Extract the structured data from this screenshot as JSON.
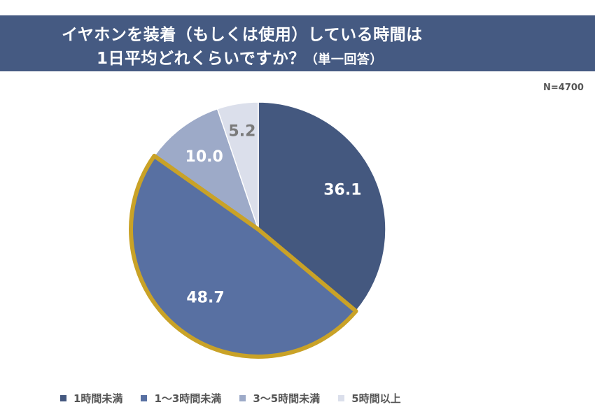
{
  "header": {
    "title_line1": "イヤホンを装着（もしくは使用）している時間は",
    "title_line2": "1日平均どれくらいですか？",
    "title_suffix": "（単一回答）"
  },
  "sample_size": "N=4700",
  "chart_data": {
    "type": "pie",
    "title": "イヤホンを装着（もしくは使用）している時間は1日平均どれくらいですか？（単一回答）",
    "start_angle_deg": 0,
    "direction": "clockwise",
    "highlighted_index": 1,
    "slices": [
      {
        "label": "1時間未満",
        "value": 36.1,
        "display": "36.1",
        "color": "#44587f",
        "label_color": "#ffffff"
      },
      {
        "label": "1～3時間未満",
        "value": 48.7,
        "display": "48.7",
        "color": "#5870a2",
        "label_color": "#ffffff"
      },
      {
        "label": "3～5時間未満",
        "value": 10.0,
        "display": "10.0",
        "color": "#9daac8",
        "label_color": "#ffffff"
      },
      {
        "label": "5時間以上",
        "value": 5.2,
        "display": "5.2",
        "color": "#dbdfeb",
        "label_color": "#7a7a7a"
      }
    ],
    "highlight_color": "#c9a227"
  },
  "legend": {
    "items": [
      {
        "label": "1時間未満",
        "color": "#44587f"
      },
      {
        "label": "1～3時間未満",
        "color": "#5870a2"
      },
      {
        "label": "3～5時間未満",
        "color": "#9daac8"
      },
      {
        "label": "5時間以上",
        "color": "#dbdfeb"
      }
    ]
  }
}
